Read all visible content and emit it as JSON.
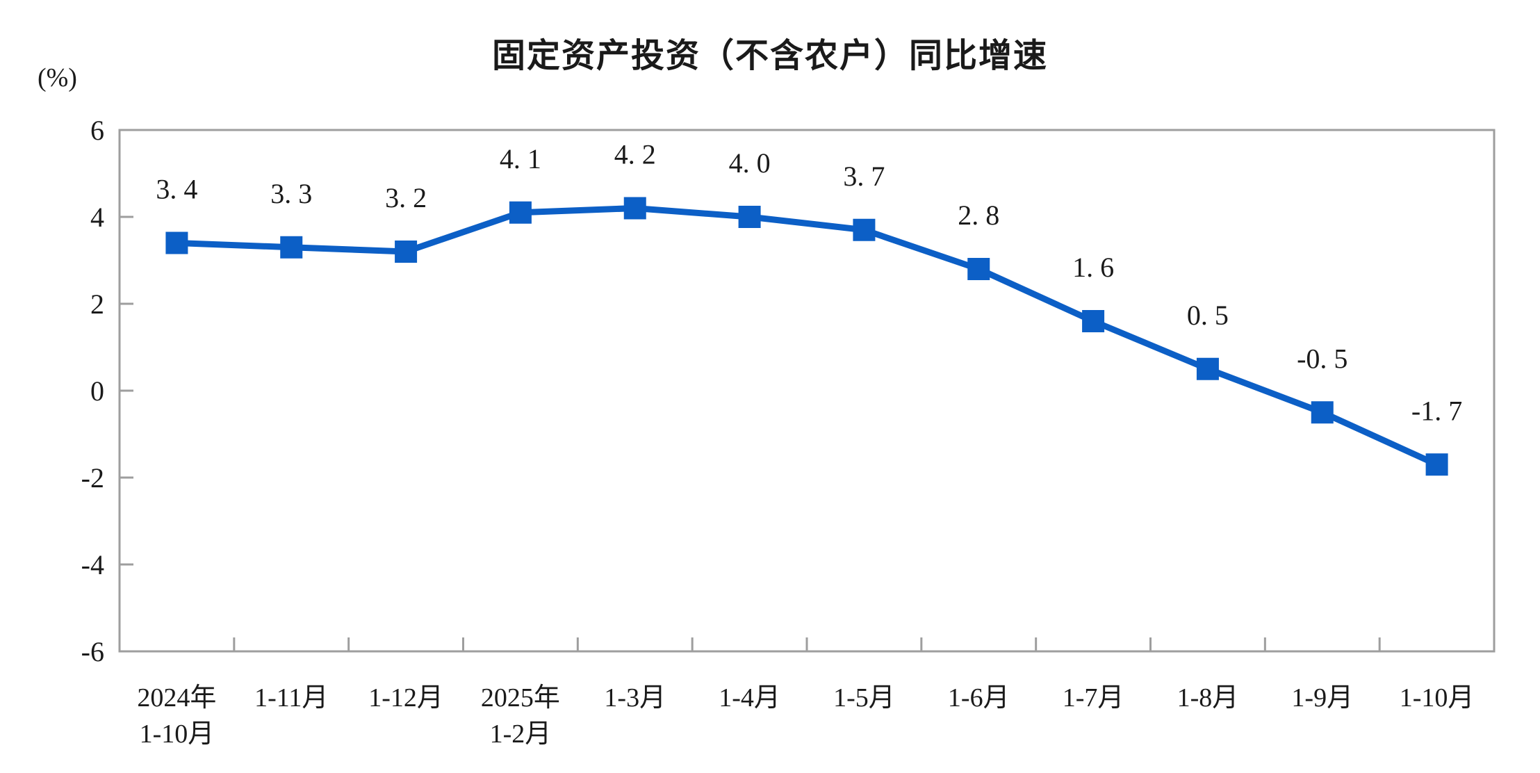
{
  "chart_data": {
    "type": "line",
    "title": "固定资产投资（不含农户）同比增速",
    "unit_label": "(%)",
    "categories": [
      "2024年\n1-10月",
      "1-11月",
      "1-12月",
      "2025年\n1-2月",
      "1-3月",
      "1-4月",
      "1-5月",
      "1-6月",
      "1-7月",
      "1-8月",
      "1-9月",
      "1-10月"
    ],
    "values": [
      3.4,
      3.3,
      3.2,
      4.1,
      4.2,
      4.0,
      3.7,
      2.8,
      1.6,
      0.5,
      -0.5,
      -1.7
    ],
    "point_labels": [
      "3. 4",
      "3. 3",
      "3. 2",
      "4. 1",
      "4. 2",
      "4. 0",
      "3. 7",
      "2. 8",
      "1. 6",
      "0. 5",
      "-0. 5",
      "-1. 7"
    ],
    "ylim": [
      -6,
      6
    ],
    "yticks": [
      6,
      4,
      2,
      0,
      -2,
      -4,
      -6
    ],
    "grid": "off",
    "legend": "none",
    "colors": {
      "line": "#0C5FC6",
      "axis": "#9E9E9E",
      "text": "#1a1a1a"
    }
  }
}
